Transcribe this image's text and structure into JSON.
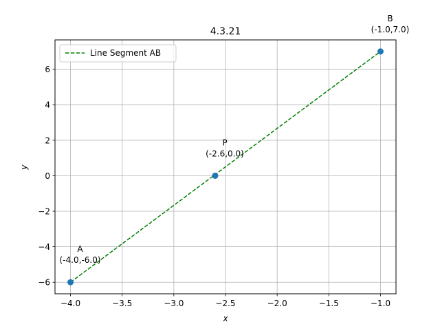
{
  "chart_data": {
    "type": "line",
    "title": "4.3.21",
    "xlabel": "x",
    "ylabel": "y",
    "xlim": [
      -4.15,
      -0.85
    ],
    "ylim": [
      -6.65,
      7.65
    ],
    "xticks": [
      -4.0,
      -3.5,
      -3.0,
      -2.5,
      -2.0,
      -1.5,
      -1.0
    ],
    "xtick_labels": [
      "−4.0",
      "−3.5",
      "−3.0",
      "−2.5",
      "−2.0",
      "−1.5",
      "−1.0"
    ],
    "yticks": [
      -6,
      -4,
      -2,
      0,
      2,
      4,
      6
    ],
    "ytick_labels": [
      "−6",
      "−4",
      "−2",
      "0",
      "2",
      "4",
      "6"
    ],
    "grid": true,
    "legend_position": "upper-left",
    "series": [
      {
        "name": "Line Segment AB",
        "x": [
          -4.0,
          -1.0
        ],
        "y": [
          -6.0,
          7.0
        ],
        "style": "dashed",
        "color": "#008000"
      }
    ],
    "points": [
      {
        "name": "A",
        "coords": "(-4.0,-6.0)",
        "x": -4.0,
        "y": -6.0
      },
      {
        "name": "P",
        "coords": "(-2.6,0.0)",
        "x": -2.6,
        "y": 0.0
      },
      {
        "name": "B",
        "coords": "(-1.0,7.0)",
        "x": -1.0,
        "y": 7.0
      }
    ],
    "point_color": "#1f77b4"
  }
}
